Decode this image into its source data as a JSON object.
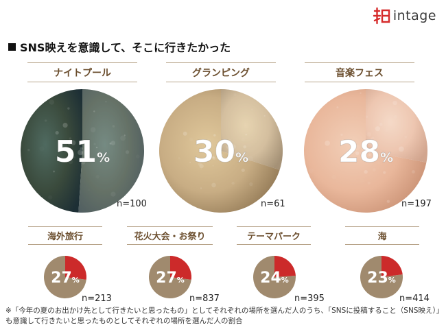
{
  "header": {
    "title": "SNS映えを意識して、そこに行きたかった",
    "brand_name": "intage",
    "brand_icon": "intage-kanji-logo-icon",
    "brand_color": "#d62b2b"
  },
  "chart_data": {
    "type": "pie",
    "title": "SNS映えを意識して、そこに行きたかった",
    "unit": "%",
    "categories": [
      "ナイトプール",
      "グランピング",
      "音楽フェス",
      "海外旅行",
      "花火大会・お祭り",
      "テーマパーク",
      "海"
    ],
    "values": [
      51,
      30,
      28,
      27,
      27,
      24,
      23
    ],
    "n": [
      "n=100",
      "n=61",
      "n=197",
      "n=213",
      "n=837",
      "n=395",
      "n=414"
    ],
    "highlight_color": "#cc2a2a",
    "rest_color": "#a08a6e"
  },
  "footnote": "※「今年の夏のお出かけ先として行きたいと思ったもの」としてそれぞれの場所を選んだ人のうち、「SNSに投稿すること（SNS映え）」も意識して行きたいと思ったものとしてそれぞれの場所を選んだ人の割合"
}
